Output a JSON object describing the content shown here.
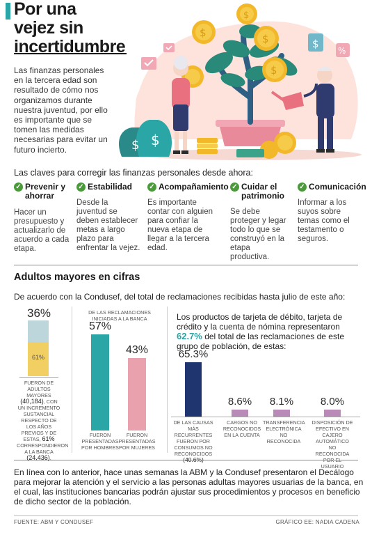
{
  "header": {
    "title_lines": [
      "Por una",
      "vejez sin",
      "incertidumbre"
    ],
    "intro": "Las finanzas personales en la tercera edad son resultado de cómo nos organizamos durante nuestra juventud, por ello es importante que se tomen las medidas necesarias para evitar un futuro incierto."
  },
  "claves": {
    "heading": "Las claves para corregir las finanzas personales desde ahora:",
    "items": [
      {
        "title": "Prevenir y ahorrar",
        "body": "Hacer un presupuesto y actualizarlo de acuerdo a cada etapa."
      },
      {
        "title": "Estabilidad",
        "body": "Desde la juventud se deben establecer metas a largo plazo para enfrentar la vejez."
      },
      {
        "title": "Acompañamiento",
        "body": "Es importante contar con alguien para confiar la nueva etapa de llegar a la tercera edad."
      },
      {
        "title": "Cuidar el patrimonio",
        "body": "Se debe proteger y legar todo lo que se construyó en la etapa productiva."
      },
      {
        "title": "Comunicación",
        "body": "Informar a los suyos sobre temas como el testamento o seguros."
      }
    ]
  },
  "cifras": {
    "title": "Adultos mayores en cifras",
    "lead": "De acuerdo con la Condusef, del total de reclamaciones recibidas hasta julio de este año:"
  },
  "stack": {
    "top_label": "36%",
    "inner_label": "61%",
    "values": {
      "outer": 36,
      "inner": 61
    },
    "caption_parts": [
      "FUERON DE ADULTOS MAYORES ",
      "(40,184)",
      ", CON UN INCREMENTO SUSTANCIAL RESPECTO DE LOS AÑOS PREVIOS Y DE ESTAS, ",
      "61%",
      " CORRESPONDIERON A LA BANCA ",
      "(24,436)",
      "."
    ]
  },
  "gender": {
    "heading": "DE LAS RECLAMACIONES INICIADAS A LA BANCA",
    "bars": [
      {
        "label": "57%",
        "value": 57,
        "caption": "FUERON PRESENTADAS POR HOMBRES",
        "color": "#2aa6a6"
      },
      {
        "label": "43%",
        "value": 43,
        "caption": "FUERON PRESENTADAS POR MUJERES",
        "color": "#e8a1ad"
      }
    ]
  },
  "products": {
    "text_before": "Los productos de tarjeta de débito, tarjeta de crédito y la cuenta de nómina representaron ",
    "highlight": "62.7%",
    "text_after": " del total de las reclamaciones de este grupo de población, de estas:",
    "bars": [
      {
        "label": "65.3%",
        "value": 65.3,
        "caption": "DE LAS CAUSAS MÁS RECURRENTES FUERON POR CONSUMOS NO RECONOCIDOS",
        "extra": "(40.6%)",
        "color": "#1f3570"
      },
      {
        "label": "8.6%",
        "value": 8.6,
        "caption": "CARGOS NO RECONOCIDOS EN LA CUENTA",
        "extra": "",
        "color": "#b98ab8"
      },
      {
        "label": "8.1%",
        "value": 8.1,
        "caption": "TRANSFERENCIA ELECTRÓNICA NO RECONOCIDA",
        "extra": "",
        "color": "#b98ab8"
      },
      {
        "label": "8.0%",
        "value": 8.0,
        "caption": "DISPOSICIÓN DE EFECTIVO EN CAJERO AUTOMÁTICO NO RECONOCIDA POR EL USUARIO",
        "extra": "",
        "color": "#b98ab8"
      }
    ]
  },
  "closing": "En línea con lo anterior, hace unas semanas la ABM y la Condusef presentaron el Decálogo para mejorar la atención y el servicio a las personas adultas mayores usuarias de la banca, en el cual, las instituciones bancarias podrán ajustar sus procedimientos y procesos en beneficio de dicho sector de la población.",
  "footer": {
    "source": "FUENTE: ABM Y CONDUSEF",
    "credit": "GRÁFICO EE: NADIA CADENA"
  },
  "colors": {
    "teal": "#2aa6a6",
    "pink": "#e8a1ad",
    "navy": "#1f3570",
    "lilac": "#b98ab8",
    "check": "#4a9a3a",
    "yellow": "#f2cf63",
    "light_blue": "#bcd6dc"
  }
}
